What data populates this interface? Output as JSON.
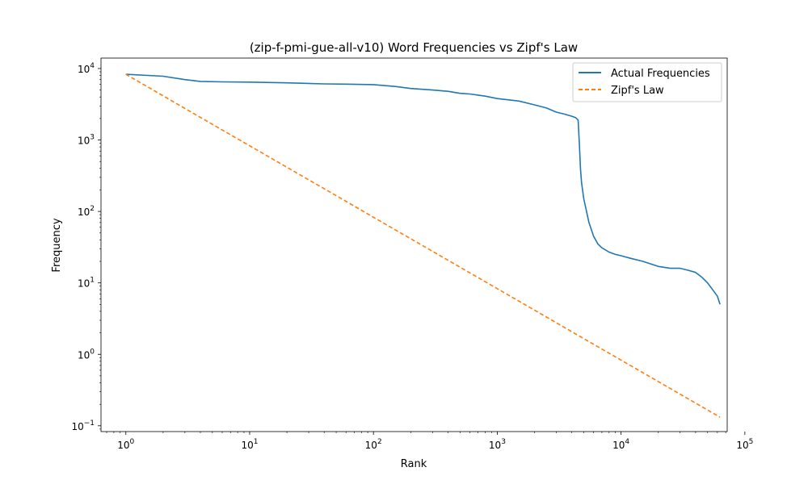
{
  "chart_data": {
    "type": "line",
    "title": "(zip-f-pmi-gue-all-v10) Word Frequencies vs Zipf's Law",
    "xlabel": "Rank",
    "ylabel": "Frequency",
    "xscale": "log",
    "yscale": "log",
    "xlim": [
      0.63,
      72000
    ],
    "ylim": [
      0.083,
      14000
    ],
    "x_ticks": [
      1,
      10,
      100,
      1000,
      10000,
      100000
    ],
    "x_tick_labels": [
      [
        "10",
        "0"
      ],
      [
        "10",
        "1"
      ],
      [
        "10",
        "2"
      ],
      [
        "10",
        "3"
      ],
      [
        "10",
        "4"
      ],
      [
        "10",
        "5"
      ]
    ],
    "y_ticks": [
      0.1,
      1,
      10,
      100,
      1000,
      10000
    ],
    "y_tick_labels": [
      [
        "10",
        "−1"
      ],
      [
        "10",
        "0"
      ],
      [
        "10",
        "1"
      ],
      [
        "10",
        "2"
      ],
      [
        "10",
        "3"
      ],
      [
        "10",
        "4"
      ]
    ],
    "grid": false,
    "legend_position": "upper right",
    "series": [
      {
        "name": "Actual Frequencies",
        "color": "#1f77b4",
        "style": "solid",
        "x": [
          1,
          2,
          3,
          4,
          6,
          10,
          20,
          40,
          60,
          100,
          150,
          200,
          300,
          400,
          500,
          600,
          700,
          800,
          1000,
          1500,
          2000,
          2500,
          3000,
          3500,
          4000,
          4300,
          4500,
          4600,
          4700,
          4800,
          5000,
          5500,
          6000,
          6500,
          7000,
          8000,
          9000,
          10000,
          12000,
          15000,
          20000,
          25000,
          30000,
          35000,
          40000,
          45000,
          50000,
          55000,
          60000,
          63000
        ],
        "y": [
          8300,
          7800,
          7000,
          6600,
          6500,
          6450,
          6300,
          6100,
          6050,
          5950,
          5600,
          5250,
          5000,
          4800,
          4500,
          4400,
          4250,
          4100,
          3800,
          3500,
          3100,
          2800,
          2450,
          2300,
          2150,
          2050,
          1900,
          900,
          400,
          250,
          150,
          70,
          45,
          35,
          31,
          27,
          25,
          24,
          22,
          20,
          17,
          16,
          16,
          15,
          14,
          12,
          10,
          8,
          6.5,
          5
        ]
      },
      {
        "name": "Zipf's Law",
        "color": "#ff7f0e",
        "style": "dashed",
        "x": [
          1,
          63000
        ],
        "y": [
          8300,
          0.1317
        ]
      }
    ]
  }
}
